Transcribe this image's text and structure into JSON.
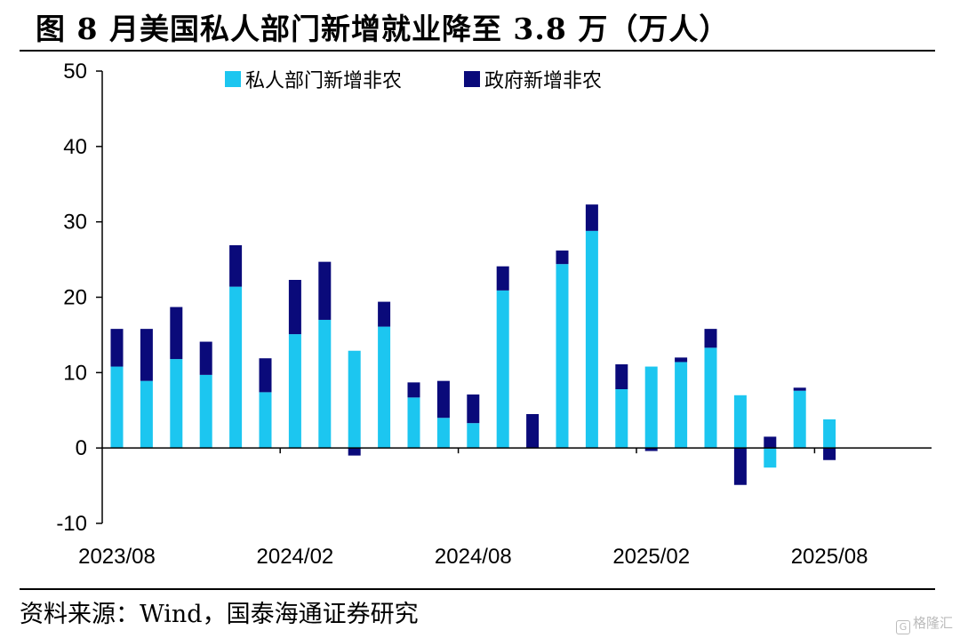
{
  "figure": {
    "title": "图    8 月美国私人部门新增就业降至 3.8 万（万人）",
    "source": "资料来源：Wind，国泰海通证券研究",
    "watermark": "格隆汇",
    "watermark_icon": "G"
  },
  "chart_data": {
    "type": "bar",
    "stacked": true,
    "categories": [
      "2023/08",
      "2023/09",
      "2023/10",
      "2023/11",
      "2023/12",
      "2024/01",
      "2024/02",
      "2024/03",
      "2024/04",
      "2024/05",
      "2024/06",
      "2024/07",
      "2024/08",
      "2024/09",
      "2024/10",
      "2024/11",
      "2024/12",
      "2025/01",
      "2025/02",
      "2025/03",
      "2025/04",
      "2025/05",
      "2025/06",
      "2025/07",
      "2025/08"
    ],
    "tick_labels": [
      "2023/08",
      "2024/02",
      "2024/08",
      "2025/02",
      "2025/08"
    ],
    "series": [
      {
        "name": "私人部门新增非农",
        "color": "#1CC6F0",
        "values": [
          10.8,
          8.9,
          11.8,
          9.7,
          21.4,
          7.4,
          15.1,
          17.0,
          12.9,
          16.1,
          6.7,
          4.0,
          3.3,
          20.9,
          0.0,
          24.4,
          28.8,
          7.8,
          10.8,
          11.4,
          13.3,
          7.0,
          -2.6,
          7.6,
          3.8
        ]
      },
      {
        "name": "政府新增非农",
        "color": "#0A0A7A",
        "values": [
          5.0,
          6.9,
          6.9,
          4.4,
          5.5,
          4.5,
          7.2,
          7.7,
          -1.0,
          3.3,
          2.0,
          4.9,
          3.8,
          3.2,
          4.5,
          1.8,
          3.5,
          3.3,
          -0.4,
          0.6,
          2.5,
          -4.9,
          1.5,
          0.4,
          -1.6
        ]
      }
    ],
    "yticks": [
      -10,
      0,
      10,
      20,
      30,
      40,
      50
    ],
    "ylim": [
      -10,
      50
    ],
    "xlabel": "",
    "ylabel": "",
    "legend_position": "top",
    "grid": false
  }
}
